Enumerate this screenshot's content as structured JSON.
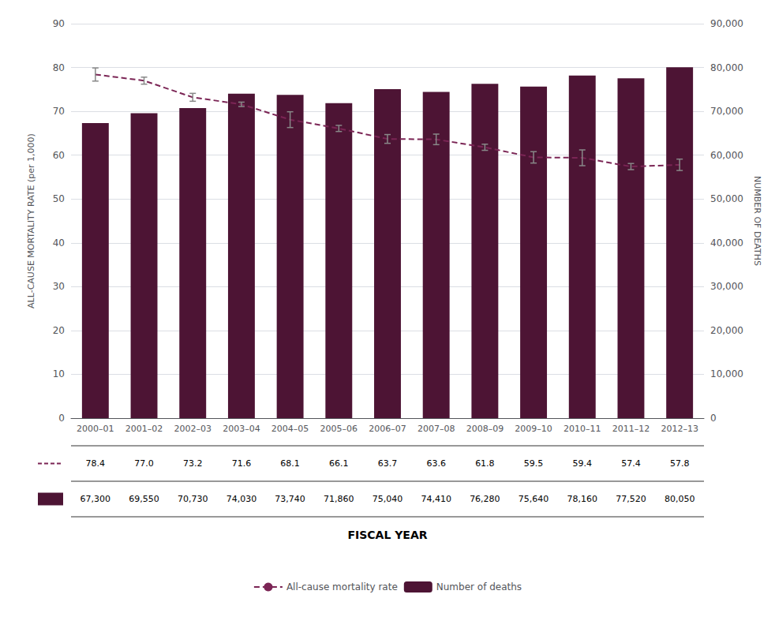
{
  "chart_data": {
    "type": "bar",
    "xlabel": "FISCAL YEAR",
    "ylabel": "ALL-CAUSE MORTALITY RATE (per 1,000)",
    "y2label": "NUMBER OF DEATHS",
    "categories": [
      "2000–01",
      "2001–02",
      "2002–03",
      "2003–04",
      "2004–05",
      "2005–06",
      "2006–07",
      "2007–08",
      "2008–09",
      "2009–10",
      "2010–11",
      "2011–12",
      "2012–13"
    ],
    "ylim": [
      0,
      90
    ],
    "yticks": [
      0,
      10,
      20,
      30,
      40,
      50,
      60,
      70,
      80,
      90
    ],
    "y2lim": [
      0,
      90000
    ],
    "y2ticks": [
      {
        "value": 0,
        "label": "0"
      },
      {
        "value": 10000,
        "label": "10,000"
      },
      {
        "value": 20000,
        "label": "20,000"
      },
      {
        "value": 30000,
        "label": "30,000"
      },
      {
        "value": 40000,
        "label": "40,000"
      },
      {
        "value": 50000,
        "label": "50,000"
      },
      {
        "value": 60000,
        "label": "60,000"
      },
      {
        "value": 70000,
        "label": "70,000"
      },
      {
        "value": 80000,
        "label": "80,000"
      },
      {
        "value": 90000,
        "label": "90,000"
      }
    ],
    "grid": true,
    "legend": "bottom",
    "series": [
      {
        "name": "All-cause mortality rate",
        "type": "line",
        "line_style": "dashed",
        "color": "#7b2555",
        "values": [
          78.4,
          77.0,
          73.2,
          71.6,
          68.1,
          66.1,
          63.7,
          63.6,
          61.8,
          59.5,
          59.4,
          57.4,
          57.8
        ],
        "value_labels": [
          "78.4",
          "77.0",
          "73.2",
          "71.6",
          "68.1",
          "66.1",
          "63.7",
          "63.6",
          "61.8",
          "59.5",
          "59.4",
          "57.4",
          "57.8"
        ],
        "error_lower": [
          1.5,
          0.8,
          0.9,
          0.5,
          1.8,
          0.7,
          1.0,
          1.2,
          0.7,
          1.3,
          1.8,
          0.7,
          1.3
        ],
        "error_upper": [
          1.5,
          0.8,
          0.9,
          0.5,
          1.8,
          0.7,
          1.0,
          1.2,
          0.7,
          1.3,
          1.8,
          0.7,
          1.3
        ],
        "error_color": "#888888"
      },
      {
        "name": "Number of deaths",
        "type": "bar",
        "axis": "y2",
        "color": "#4d1434",
        "values": [
          67300,
          69550,
          70730,
          74030,
          73740,
          71860,
          75040,
          74410,
          76280,
          75640,
          78160,
          77520,
          80050
        ],
        "value_labels": [
          "67,300",
          "69,550",
          "70,730",
          "74,030",
          "73,740",
          "71,860",
          "75,040",
          "74,410",
          "76,280",
          "75,640",
          "78,160",
          "77,520",
          "80,050"
        ]
      }
    ]
  }
}
